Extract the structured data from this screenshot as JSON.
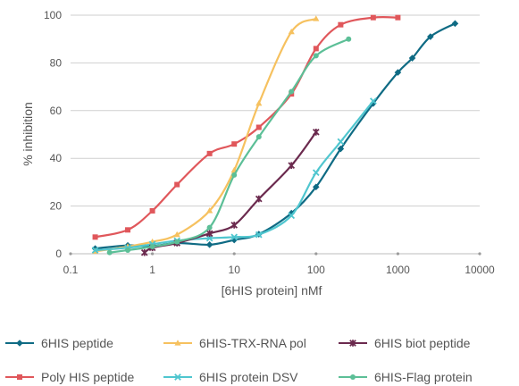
{
  "chart_data": {
    "type": "line",
    "xlabel": "[6HIS protein] nMf",
    "ylabel": "% inhibition",
    "x_scale": "log",
    "xlim": [
      0.1,
      10000
    ],
    "ylim": [
      0,
      100
    ],
    "x_ticks": [
      0.1,
      1,
      10,
      100,
      1000,
      10000
    ],
    "x_tick_labels": [
      "0.1",
      "1",
      "10",
      "100",
      "1000",
      "10000"
    ],
    "y_ticks": [
      0,
      20,
      40,
      60,
      80,
      100
    ],
    "y_tick_labels": [
      "0",
      "20",
      "40",
      "60",
      "80",
      "100"
    ],
    "grid": "horizontal",
    "legend_position": "bottom",
    "series": [
      {
        "name": "6HIS peptide",
        "color": "#0f6b84",
        "marker": "diamond",
        "points": [
          [
            0.2,
            2.2
          ],
          [
            0.5,
            3.5
          ],
          [
            1,
            3.2
          ],
          [
            2,
            4.5
          ],
          [
            5,
            3.8
          ],
          [
            10,
            5.8
          ],
          [
            20,
            8.2
          ],
          [
            50,
            17
          ],
          [
            100,
            28
          ],
          [
            200,
            44
          ],
          [
            500,
            63
          ],
          [
            1000,
            76
          ],
          [
            1500,
            82
          ],
          [
            2500,
            91
          ],
          [
            5000,
            96.5
          ]
        ]
      },
      {
        "name": "Poly HIS peptide",
        "color": "#e0575b",
        "marker": "square",
        "points": [
          [
            0.2,
            7
          ],
          [
            0.5,
            10
          ],
          [
            1,
            18
          ],
          [
            2,
            29
          ],
          [
            5,
            42
          ],
          [
            10,
            46
          ],
          [
            20,
            53
          ],
          [
            50,
            67
          ],
          [
            100,
            86
          ],
          [
            200,
            96
          ],
          [
            500,
            99
          ],
          [
            1000,
            99
          ]
        ]
      },
      {
        "name": "6HIS-TRX-RNA pol",
        "color": "#f6c15f",
        "marker": "triangle",
        "points": [
          [
            0.2,
            1
          ],
          [
            0.5,
            3
          ],
          [
            1,
            5
          ],
          [
            2,
            8
          ],
          [
            5,
            18
          ],
          [
            10,
            35
          ],
          [
            20,
            63
          ],
          [
            50,
            93
          ],
          [
            100,
            98.5
          ]
        ]
      },
      {
        "name": "6HIS protein DSV",
        "color": "#4fc6cf",
        "marker": "x",
        "points": [
          [
            0.2,
            1.5
          ],
          [
            0.5,
            2.5
          ],
          [
            1,
            4
          ],
          [
            2,
            5.5
          ],
          [
            5,
            6.5
          ],
          [
            10,
            7
          ],
          [
            20,
            8
          ],
          [
            50,
            16
          ],
          [
            100,
            34
          ],
          [
            200,
            47
          ],
          [
            500,
            64
          ]
        ]
      },
      {
        "name": "6HIS biot peptide",
        "color": "#6b2a4e",
        "marker": "star",
        "points": [
          [
            0.8,
            0.5
          ],
          [
            1,
            2.5
          ],
          [
            2,
            4.5
          ],
          [
            5,
            8.5
          ],
          [
            10,
            12
          ],
          [
            20,
            23
          ],
          [
            50,
            37
          ],
          [
            100,
            51
          ]
        ]
      },
      {
        "name": "6HIS-Flag protein",
        "color": "#5cbf97",
        "marker": "circle",
        "points": [
          [
            0.3,
            0.5
          ],
          [
            0.5,
            1.5
          ],
          [
            1,
            3
          ],
          [
            2,
            5
          ],
          [
            5,
            11
          ],
          [
            10,
            33
          ],
          [
            20,
            49
          ],
          [
            50,
            68
          ],
          [
            100,
            83
          ],
          [
            250,
            90
          ]
        ]
      }
    ]
  }
}
